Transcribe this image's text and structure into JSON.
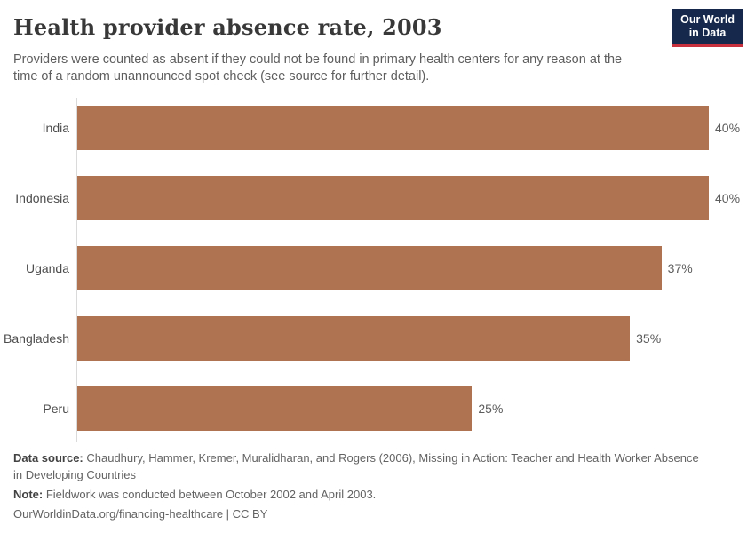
{
  "header": {
    "title": "Health provider absence rate, 2003",
    "subtitle": "Providers were counted as absent if they could not be found in primary health centers for any reason at the time of a random unannounced spot check (see source for further detail).",
    "logo": {
      "line1": "Our World",
      "line2": "in Data"
    }
  },
  "chart_data": {
    "type": "bar",
    "orientation": "horizontal",
    "title": "Health provider absence rate, 2003",
    "categories": [
      "India",
      "Indonesia",
      "Uganda",
      "Bangladesh",
      "Peru"
    ],
    "values": [
      40,
      40,
      37,
      35,
      25
    ],
    "value_labels": [
      "40%",
      "40%",
      "37%",
      "35%",
      "25%"
    ],
    "unit": "%",
    "xlim": [
      0,
      40
    ],
    "grid": false,
    "legend": "none",
    "bar_color": "#b07352"
  },
  "footer": {
    "data_source_label": "Data source:",
    "data_source_text": " Chaudhury, Hammer, Kremer, Muralidharan, and Rogers (2006), Missing in Action: Teacher and Health Worker Absence in Developing Countries",
    "note_label": "Note:",
    "note_text": " Fieldwork was conducted between October 2002 and April 2003.",
    "url_text": "OurWorldinData.org/financing-healthcare | CC BY"
  },
  "colors": {
    "bar": "#b07352",
    "logo_navy": "#16294d",
    "logo_red": "#c7303c",
    "title_text": "#383838",
    "body_text": "#5e5e5e",
    "axis_line": "#dadada"
  }
}
